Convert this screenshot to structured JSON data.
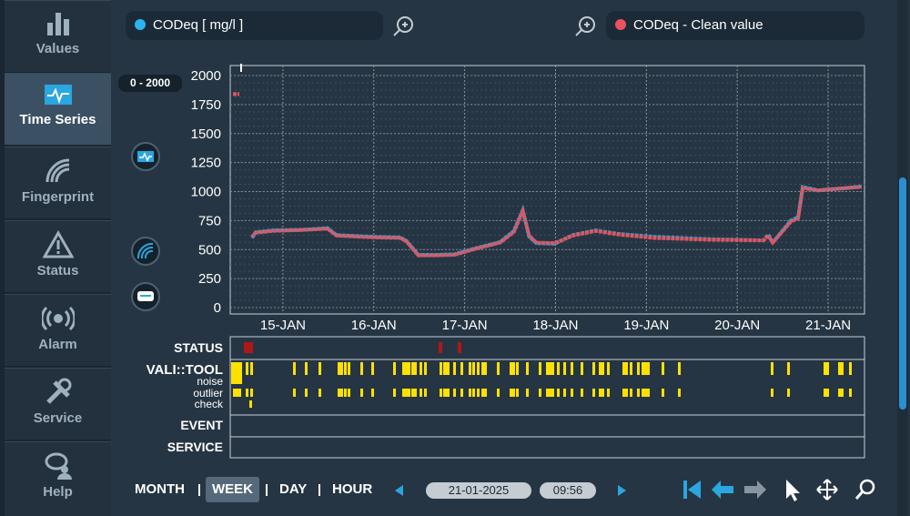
{
  "sidebar": {
    "items": [
      "Values",
      "Time Series",
      "Fingerprint",
      "Status",
      "Alarm",
      "Service",
      "Help"
    ]
  },
  "range_badge": "0 - 2000",
  "chart_data": {
    "type": "line",
    "x": [
      14.45,
      14.52,
      14.62,
      14.66,
      14.7,
      14.89,
      15.2,
      15.49,
      15.59,
      16.0,
      16.29,
      16.36,
      16.49,
      16.69,
      16.89,
      17.09,
      17.39,
      17.54,
      17.64,
      17.71,
      17.79,
      17.99,
      18.19,
      18.44,
      18.69,
      19.09,
      19.69,
      20.29,
      20.34,
      20.39,
      20.59,
      20.67,
      20.72,
      20.89,
      21.19,
      21.37
    ],
    "xlim": [
      14.42,
      21.4
    ],
    "xticks": [
      {
        "value": 15,
        "label": "15-JAN"
      },
      {
        "value": 16,
        "label": "16-JAN"
      },
      {
        "value": 17,
        "label": "17-JAN"
      },
      {
        "value": 18,
        "label": "18-JAN"
      },
      {
        "value": 19,
        "label": "19-JAN"
      },
      {
        "value": 20,
        "label": "20-JAN"
      },
      {
        "value": 21,
        "label": "21-JAN"
      }
    ],
    "ylim": [
      0,
      2000
    ],
    "yticks": [
      0,
      250,
      500,
      750,
      1000,
      1250,
      1500,
      1750,
      2000
    ],
    "grid": true,
    "series": [
      {
        "name": "CODeq [ mg/l ]",
        "color": "#29a8e0",
        "values": [
          1840,
          1840,
          null,
          600,
          650,
          665,
          670,
          685,
          625,
          610,
          605,
          575,
          455,
          455,
          460,
          505,
          565,
          660,
          840,
          610,
          555,
          550,
          625,
          665,
          635,
          610,
          590,
          580,
          630,
          560,
          750,
          780,
          1040,
          1010,
          1030,
          1045
        ]
      },
      {
        "name": "CODeq - Clean value",
        "color": "#e5535d",
        "values": [
          1840,
          1840,
          null,
          612,
          645,
          660,
          668,
          680,
          620,
          605,
          600,
          570,
          450,
          450,
          455,
          500,
          560,
          650,
          830,
          620,
          560,
          555,
          620,
          660,
          630,
          600,
          585,
          580,
          620,
          560,
          740,
          770,
          1030,
          1010,
          1030,
          1040
        ]
      }
    ]
  },
  "status_panel": {
    "rows": [
      "STATUS",
      "VALI::TOOL",
      "noise",
      "outlier",
      "check",
      "EVENT",
      "SERVICE"
    ]
  },
  "toolbar": {
    "periods": [
      "MONTH",
      "WEEK",
      "DAY",
      "HOUR"
    ],
    "date": "21-01-2025",
    "time": "09:56"
  }
}
